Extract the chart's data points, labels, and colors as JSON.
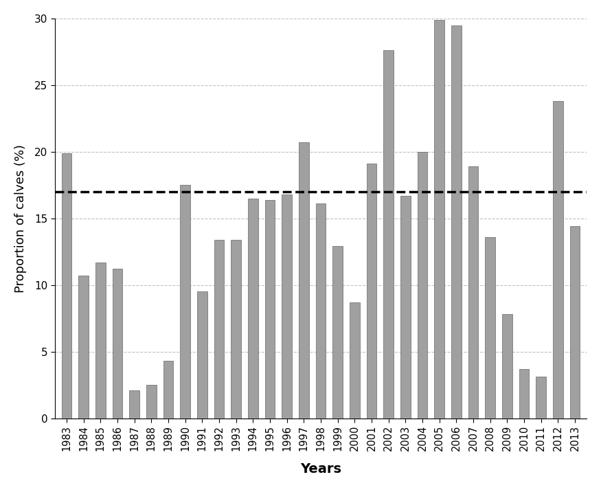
{
  "years": [
    1983,
    1984,
    1985,
    1986,
    1987,
    1988,
    1989,
    1990,
    1991,
    1992,
    1993,
    1994,
    1995,
    1996,
    1997,
    1998,
    1999,
    2000,
    2001,
    2002,
    2003,
    2004,
    2005,
    2006,
    2007,
    2008,
    2009,
    2010,
    2011,
    2012,
    2013
  ],
  "values": [
    19.9,
    10.7,
    11.7,
    11.2,
    2.1,
    2.5,
    4.3,
    17.5,
    9.5,
    13.4,
    13.4,
    16.5,
    16.4,
    16.8,
    20.7,
    16.1,
    12.9,
    8.7,
    19.1,
    27.6,
    16.7,
    20.0,
    29.9,
    29.5,
    18.9,
    13.6,
    7.8,
    3.7,
    3.1,
    23.8,
    14.4
  ],
  "dashed_line_y": 17.0,
  "bar_color": "#A0A0A0",
  "bar_edge_color": "#666666",
  "ylabel": "Proportion of calves (%)",
  "xlabel": "Years",
  "ylim": [
    0,
    30
  ],
  "yticks": [
    0,
    5,
    10,
    15,
    20,
    25,
    30
  ],
  "grid_color": "#C0C0C0",
  "dashed_line_color": "#000000",
  "background_color": "#FFFFFF",
  "bar_width": 0.6
}
